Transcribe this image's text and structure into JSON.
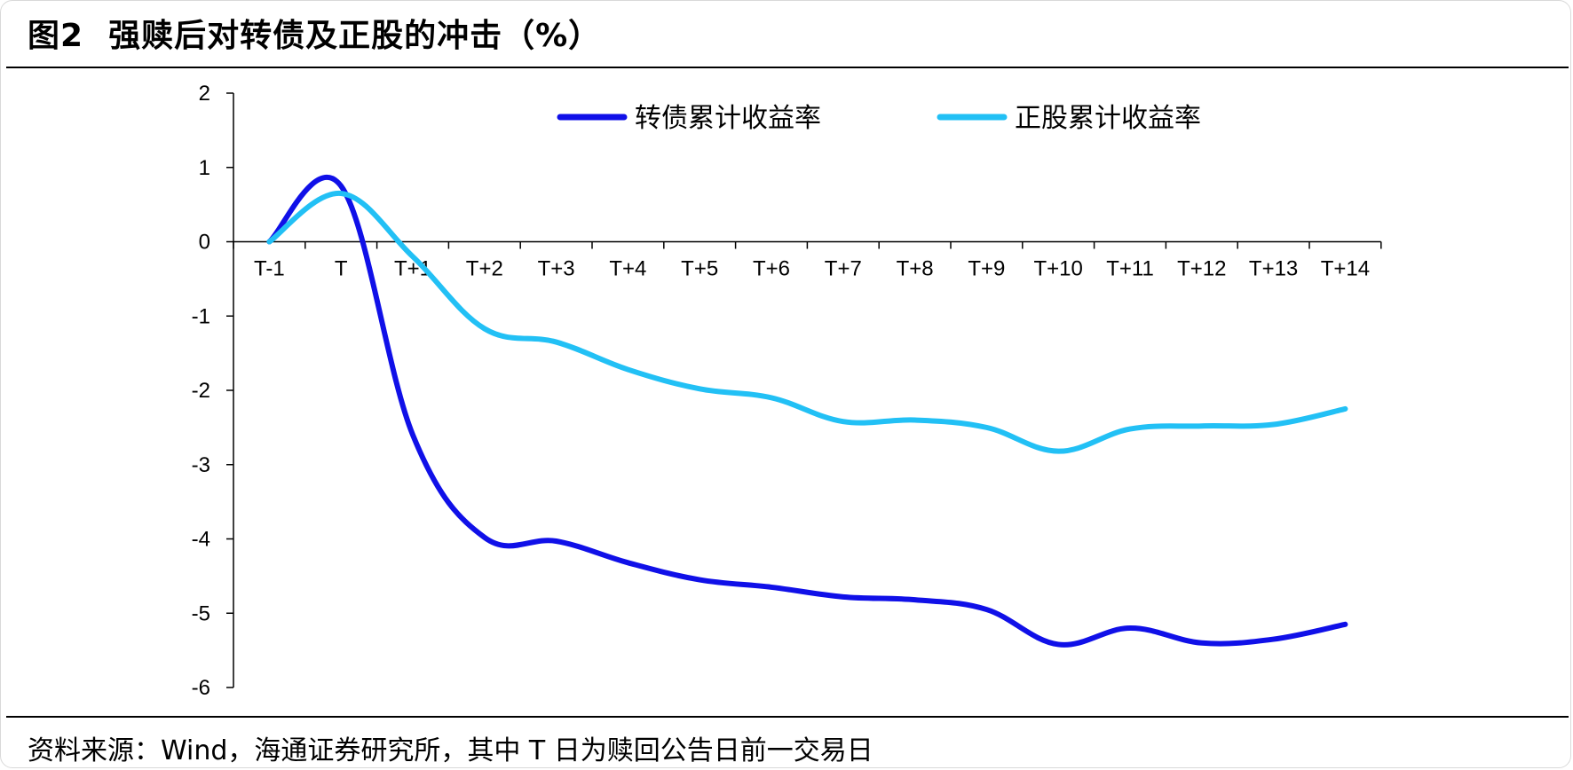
{
  "header": {
    "figure_no": "图2",
    "title": "强赎后对转债及正股的冲击（%）"
  },
  "footer": {
    "source": "资料来源：Wind，海通证券研究所，其中 T 日为赎回公告日前一交易日"
  },
  "colors": {
    "series_cb": "#1010e8",
    "series_stock": "#22c0f5",
    "axis": "#000000"
  },
  "chart_data": {
    "type": "line",
    "title": "强赎后对转债及正股的冲击（%）",
    "xlabel": "",
    "ylabel": "",
    "ylim": [
      -6,
      2
    ],
    "yticks": [
      "2",
      "1",
      "0",
      "-1",
      "-2",
      "-3",
      "-4",
      "-5",
      "-6"
    ],
    "yticks_values": [
      2,
      1,
      0,
      -1,
      -2,
      -3,
      -4,
      -5,
      -6
    ],
    "categories": [
      "T-1",
      "T",
      "T+1",
      "T+2",
      "T+3",
      "T+4",
      "T+5",
      "T+6",
      "T+7",
      "T+8",
      "T+9",
      "T+10",
      "T+11",
      "T+12",
      "T+13",
      "T+14"
    ],
    "x_axis_crosses_at": 0,
    "grid": false,
    "legend_position": "top",
    "series": [
      {
        "name": "转债累计收益率",
        "values": [
          0,
          0.75,
          -2.6,
          -3.98,
          -4.03,
          -4.32,
          -4.55,
          -4.65,
          -4.78,
          -4.82,
          -4.95,
          -5.42,
          -5.2,
          -5.4,
          -5.35,
          -5.15
        ]
      },
      {
        "name": "正股累计收益率",
        "values": [
          0,
          0.65,
          -0.2,
          -1.17,
          -1.35,
          -1.72,
          -1.98,
          -2.1,
          -2.42,
          -2.4,
          -2.5,
          -2.82,
          -2.52,
          -2.48,
          -2.46,
          -2.25
        ]
      }
    ]
  }
}
